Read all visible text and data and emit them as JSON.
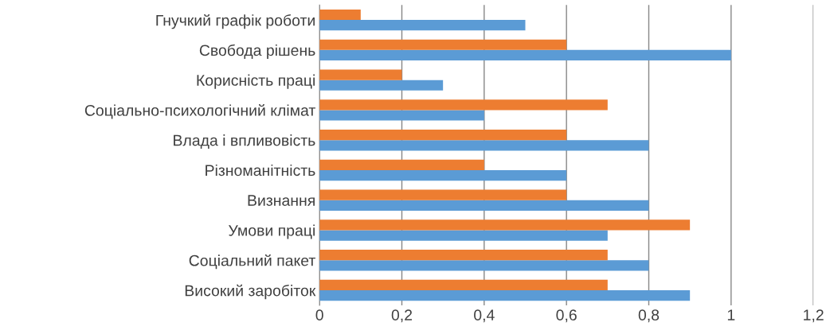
{
  "chart_data": {
    "type": "bar",
    "orientation": "horizontal",
    "categories": [
      "Гнучкий графік роботи",
      "Свобода рішень",
      "Корисність праці",
      "Соціально-психологічний клімат",
      "Влада і впливовість",
      "Різноманітність",
      "Визнання",
      "Умови праці",
      "Соціальний пакет",
      "Високий заробіток"
    ],
    "series": [
      {
        "color": "#5b9bd5",
        "values": [
          0.5,
          1.0,
          0.3,
          0.4,
          0.8,
          0.6,
          0.8,
          0.7,
          0.8,
          0.9
        ]
      },
      {
        "color": "#ed7d31",
        "values": [
          0.1,
          0.6,
          0.2,
          0.7,
          0.6,
          0.4,
          0.6,
          0.9,
          0.7,
          0.7
        ]
      }
    ],
    "xlim": [
      0,
      1.2
    ],
    "xticks": [
      0,
      {
        "value": 0.2,
        "label": "0,2"
      },
      {
        "value": 0.4,
        "label": "0,4"
      },
      {
        "value": 0.6,
        "label": "0,6"
      },
      {
        "value": 0.8,
        "label": "0,8"
      },
      1,
      {
        "value": 1.2,
        "label": "1,2"
      }
    ],
    "grid": "x",
    "legend": false
  }
}
